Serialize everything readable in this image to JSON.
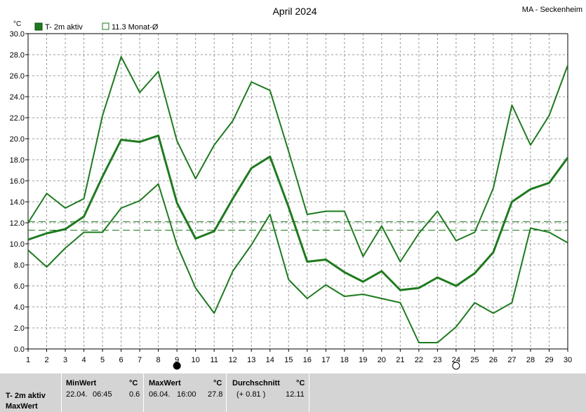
{
  "chart_data": {
    "type": "line",
    "title": "April 2024",
    "location": "MA - Seckenheim",
    "unit_label": "°C",
    "ylim": [
      0,
      30
    ],
    "yticks": [
      "0.0",
      "2.0",
      "4.0",
      "6.0",
      "8.0",
      "10.0",
      "12.0",
      "14.0",
      "16.0",
      "18.0",
      "20.0",
      "22.0",
      "24.0",
      "26.0",
      "28.0",
      "30.0"
    ],
    "x": [
      1,
      2,
      3,
      4,
      5,
      6,
      7,
      8,
      9,
      10,
      11,
      12,
      13,
      14,
      15,
      16,
      17,
      18,
      19,
      20,
      21,
      22,
      23,
      24,
      25,
      26,
      27,
      28,
      29,
      30
    ],
    "grid": true,
    "legend": {
      "placement": "top-left",
      "series_label": "T- 2m aktiv",
      "mean_label": "11.3 Monat-Ø"
    },
    "series": [
      {
        "role": "max",
        "values": [
          12.0,
          14.8,
          13.4,
          14.3,
          22.2,
          27.8,
          24.4,
          26.4,
          19.8,
          16.2,
          19.4,
          21.7,
          25.4,
          24.6,
          18.8,
          12.8,
          13.1,
          13.1,
          8.8,
          11.7,
          8.3,
          11.0,
          13.1,
          10.3,
          11.1,
          15.3,
          23.2,
          19.4,
          22.2,
          27.0
        ]
      },
      {
        "role": "mean",
        "values": [
          10.4,
          11.0,
          11.4,
          12.6,
          16.4,
          19.9,
          19.7,
          20.3,
          13.9,
          10.5,
          11.2,
          14.3,
          17.2,
          18.3,
          13.5,
          8.3,
          8.5,
          7.3,
          6.4,
          7.4,
          5.6,
          5.8,
          6.8,
          6.0,
          7.2,
          9.2,
          14.0,
          15.2,
          15.8,
          18.2
        ]
      },
      {
        "role": "min",
        "values": [
          9.4,
          7.8,
          9.6,
          11.1,
          11.1,
          13.4,
          14.1,
          15.7,
          9.9,
          5.8,
          3.4,
          7.4,
          9.9,
          12.8,
          6.6,
          4.8,
          6.1,
          5.0,
          5.2,
          4.8,
          4.4,
          0.6,
          0.6,
          2.1,
          4.4,
          3.4,
          4.4,
          11.5,
          11.1,
          10.1
        ]
      }
    ],
    "reference_lines": [
      {
        "value": 12.11,
        "style": "dashed"
      },
      {
        "value": 11.3,
        "style": "dashed"
      }
    ],
    "moon_phases": [
      {
        "day": 9,
        "phase": "new"
      },
      {
        "day": 24,
        "phase": "full"
      }
    ],
    "colors": {
      "line": "#1e7a1e",
      "reference": "#1e7a1e",
      "grid": "#9a9a9a",
      "legend_fill": "#1e7a1e"
    }
  },
  "stats": {
    "row_label_1": "T- 2m aktiv",
    "row_label_2": "MaxWert",
    "min": {
      "header": "MinWert",
      "unit": "°C",
      "date": "22.04.",
      "time": "06:45",
      "value": "0.6"
    },
    "max": {
      "header": "MaxWert",
      "unit": "°C",
      "date": "06.04.",
      "time": "16:00",
      "value": "27.8"
    },
    "avg": {
      "header": "Durchschnitt",
      "unit": "°C",
      "delta": "(+ 0.81 )",
      "value": "12.11"
    }
  }
}
